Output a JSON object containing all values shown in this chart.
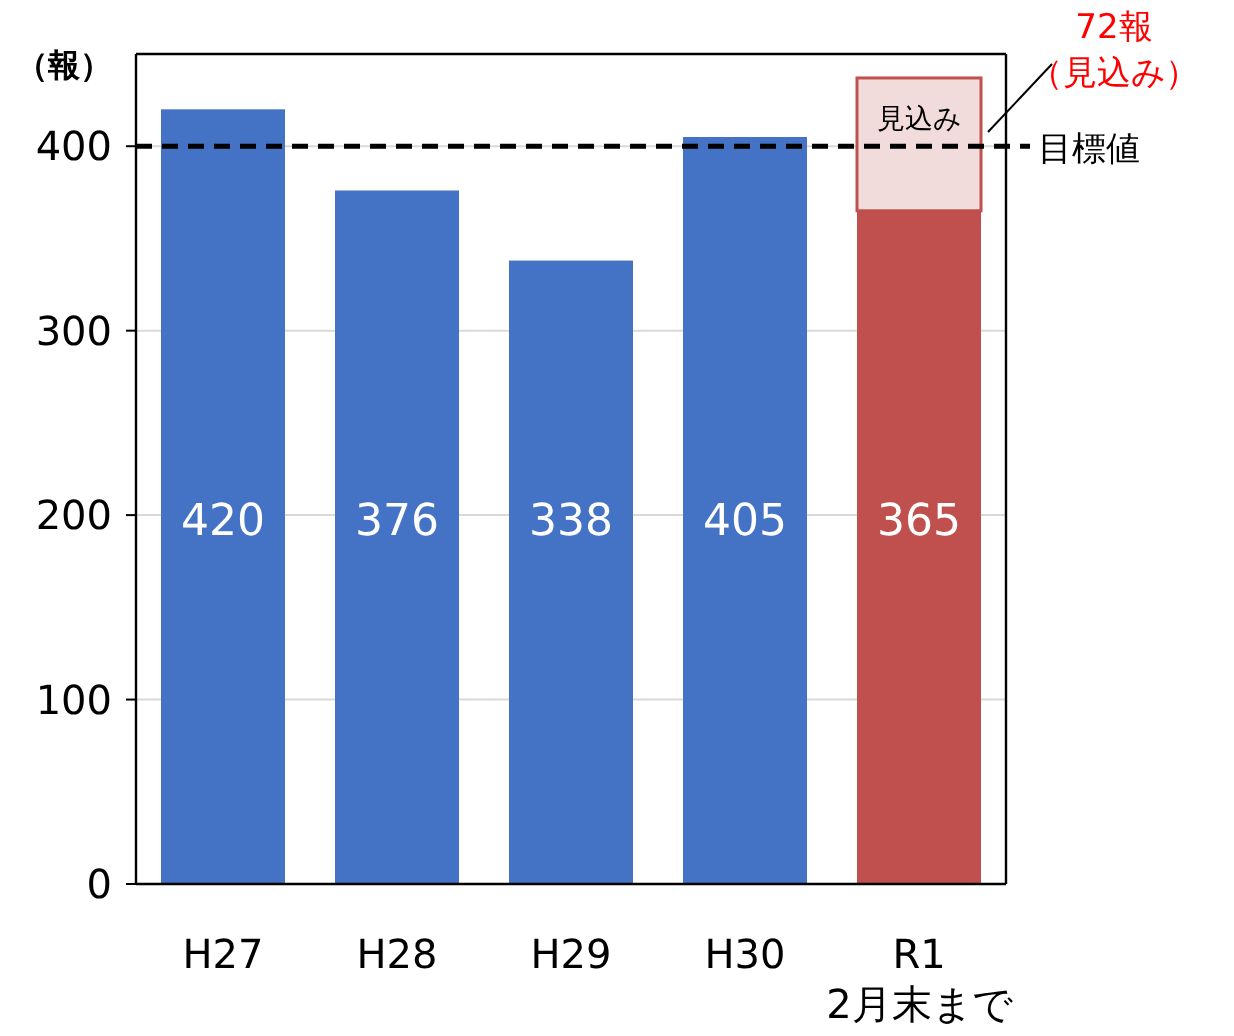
{
  "chart_data": {
    "type": "bar",
    "ylabel": "（報）",
    "stacked": true,
    "categories": [
      "H27",
      "H28",
      "H29",
      "H30",
      "R1\n2月末まで"
    ],
    "series": [
      {
        "colors": [
          "#4472c4",
          "#4472c4",
          "#4472c4",
          "#4472c4",
          "#c0504d"
        ],
        "values": [
          420,
          376,
          338,
          405,
          365
        ],
        "value_labels": [
          "420",
          "376",
          "338",
          "405",
          "365"
        ]
      },
      {
        "color": "#f2dcdb",
        "values": [
          null,
          null,
          null,
          null,
          72
        ]
      }
    ],
    "ylim": [
      0,
      450
    ],
    "yticks": [
      0,
      100,
      200,
      300,
      400
    ],
    "grid": "y",
    "ref_lines": [
      {
        "axis": "y",
        "value": 400,
        "label": "目標値",
        "color": "#000000",
        "line_style": "dashed"
      }
    ],
    "annotations": [
      "見込み",
      "72報",
      "（見込み）"
    ]
  }
}
